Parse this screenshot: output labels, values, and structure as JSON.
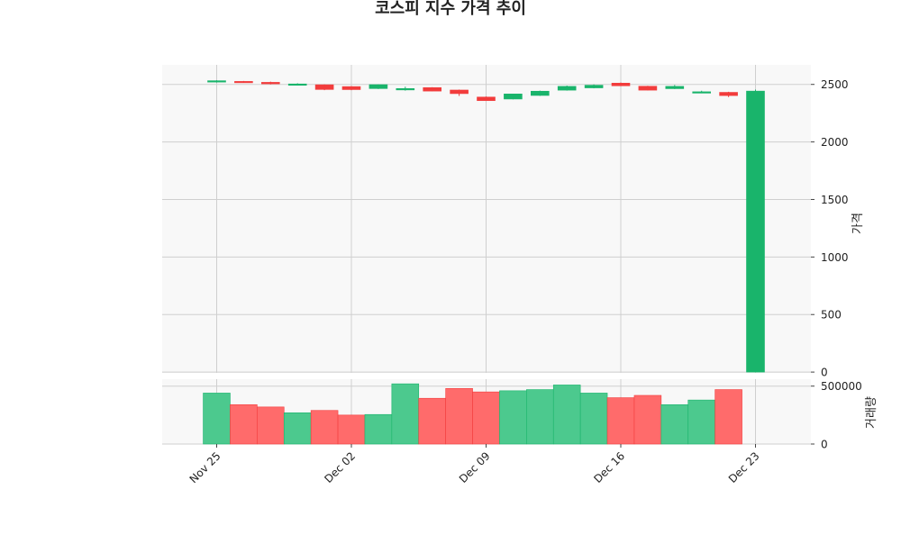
{
  "colors": {
    "up": "#19b46b",
    "down": "#f23c3c",
    "up_volume": "#4cc98e",
    "down_volume": "#ff6b6b",
    "panel_bg": "#f8f8f8",
    "grid": "#cfcfcf"
  },
  "chart_data": {
    "type": "candlestick",
    "title": "코스피 지수 가격 추이",
    "price_ylabel": "가격",
    "volume_ylabel": "거래량",
    "price_ylim": [
      -7,
      2670
    ],
    "price_ticks": [
      0,
      500,
      1000,
      1500,
      2000,
      2500
    ],
    "volume_ylim": [
      0,
      560000
    ],
    "volume_ticks": [
      0,
      500000
    ],
    "grid": true,
    "x_ticks": [
      {
        "index": 0,
        "label": "Nov 25"
      },
      {
        "index": 5,
        "label": "Dec 02"
      },
      {
        "index": 10,
        "label": "Dec 09"
      },
      {
        "index": 15,
        "label": "Dec 16"
      },
      {
        "index": 20,
        "label": "Dec 23"
      }
    ],
    "candles": [
      {
        "date": "Nov 25",
        "open": 2521,
        "high": 2536,
        "low": 2516,
        "close": 2532,
        "volume": 440000
      },
      {
        "date": "Nov 26",
        "open": 2526,
        "high": 2530,
        "low": 2514,
        "close": 2520,
        "volume": 340000
      },
      {
        "date": "Nov 27",
        "open": 2518,
        "high": 2524,
        "low": 2500,
        "close": 2505,
        "volume": 320000
      },
      {
        "date": "Nov 28",
        "open": 2502,
        "high": 2510,
        "low": 2495,
        "close": 2504,
        "volume": 270000
      },
      {
        "date": "Nov 29",
        "open": 2497,
        "high": 2500,
        "low": 2450,
        "close": 2456,
        "volume": 290000
      },
      {
        "date": "Dec 02",
        "open": 2481,
        "high": 2485,
        "low": 2450,
        "close": 2455,
        "volume": 250000
      },
      {
        "date": "Dec 03",
        "open": 2464,
        "high": 2500,
        "low": 2460,
        "close": 2498,
        "volume": 255000
      },
      {
        "date": "Dec 04",
        "open": 2452,
        "high": 2480,
        "low": 2446,
        "close": 2464,
        "volume": 520000
      },
      {
        "date": "Dec 05",
        "open": 2472,
        "high": 2476,
        "low": 2440,
        "close": 2442,
        "volume": 395000
      },
      {
        "date": "Dec 06",
        "open": 2451,
        "high": 2455,
        "low": 2400,
        "close": 2420,
        "volume": 480000
      },
      {
        "date": "Dec 09",
        "open": 2390,
        "high": 2395,
        "low": 2357,
        "close": 2359,
        "volume": 450000
      },
      {
        "date": "Dec 10",
        "open": 2373,
        "high": 2418,
        "low": 2370,
        "close": 2417,
        "volume": 460000
      },
      {
        "date": "Dec 11",
        "open": 2404,
        "high": 2446,
        "low": 2400,
        "close": 2441,
        "volume": 470000
      },
      {
        "date": "Dec 12",
        "open": 2450,
        "high": 2490,
        "low": 2446,
        "close": 2483,
        "volume": 510000
      },
      {
        "date": "Dec 13",
        "open": 2470,
        "high": 2500,
        "low": 2466,
        "close": 2493,
        "volume": 440000
      },
      {
        "date": "Dec 16",
        "open": 2511,
        "high": 2516,
        "low": 2485,
        "close": 2488,
        "volume": 400000
      },
      {
        "date": "Dec 17",
        "open": 2484,
        "high": 2488,
        "low": 2448,
        "close": 2450,
        "volume": 420000
      },
      {
        "date": "Dec 18",
        "open": 2463,
        "high": 2495,
        "low": 2460,
        "close": 2483,
        "volume": 340000
      },
      {
        "date": "Dec 19",
        "open": 2431,
        "high": 2445,
        "low": 2425,
        "close": 2436,
        "volume": 380000
      },
      {
        "date": "Dec 20",
        "open": 2431,
        "high": 2436,
        "low": 2390,
        "close": 2403,
        "volume": 470000
      },
      {
        "date": "Dec 23",
        "open": 0,
        "high": 2455,
        "low": 0,
        "close": 2442,
        "volume": 0
      }
    ]
  }
}
